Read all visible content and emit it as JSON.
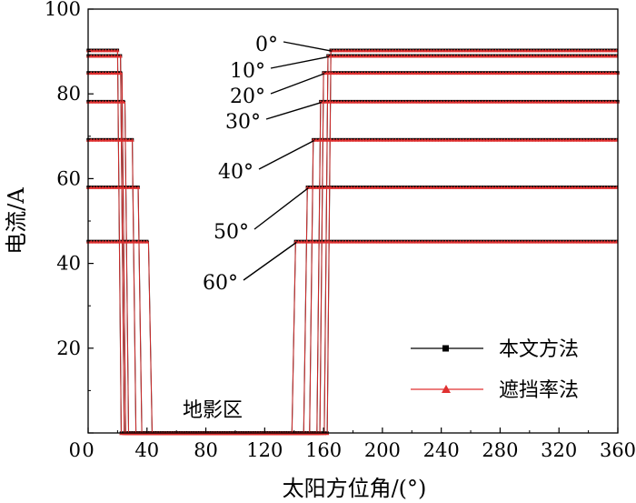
{
  "chart_data": {
    "type": "line",
    "xlabel": "太阳方位角/(°)",
    "ylabel": "电流/A",
    "xlim": [
      0,
      360
    ],
    "ylim": [
      0,
      100
    ],
    "xticks": [
      0,
      40,
      80,
      120,
      160,
      200,
      240,
      280,
      320,
      360
    ],
    "yticks": [
      0,
      20,
      40,
      60,
      80,
      100
    ],
    "grid": false,
    "legend_position": "bottom-right",
    "shadow_label": "地影区",
    "angle_labels": [
      "0°",
      "10°",
      "20°",
      "30°",
      "40°",
      "50°",
      "60°"
    ],
    "series": [
      {
        "name": "本文方法",
        "color": "#000000",
        "marker": "square",
        "curves": [
          {
            "angle": "0°",
            "level": 90.3,
            "fall": 20,
            "rise": 165
          },
          {
            "angle": "10°",
            "level": 89.0,
            "fall": 22,
            "rise": 163
          },
          {
            "angle": "20°",
            "level": 85.0,
            "fall": 23,
            "rise": 160
          },
          {
            "angle": "30°",
            "level": 78.2,
            "fall": 25,
            "rise": 158
          },
          {
            "angle": "40°",
            "level": 69.2,
            "fall": 30,
            "rise": 153
          },
          {
            "angle": "50°",
            "level": 58.0,
            "fall": 34,
            "rise": 149
          },
          {
            "angle": "60°",
            "level": 45.2,
            "fall": 41,
            "rise": 141
          }
        ]
      },
      {
        "name": "遮挡率法",
        "color": "#e03030",
        "marker": "triangle",
        "curves": [
          {
            "angle": "0°",
            "level": 90.3,
            "fall": 20,
            "rise": 165
          },
          {
            "angle": "10°",
            "level": 89.0,
            "fall": 22,
            "rise": 163
          },
          {
            "angle": "20°",
            "level": 85.0,
            "fall": 23,
            "rise": 160
          },
          {
            "angle": "30°",
            "level": 78.2,
            "fall": 25,
            "rise": 158
          },
          {
            "angle": "40°",
            "level": 69.2,
            "fall": 30,
            "rise": 153
          },
          {
            "angle": "50°",
            "level": 58.0,
            "fall": 34,
            "rise": 149
          },
          {
            "angle": "60°",
            "level": 45.2,
            "fall": 41,
            "rise": 141
          }
        ]
      }
    ]
  }
}
